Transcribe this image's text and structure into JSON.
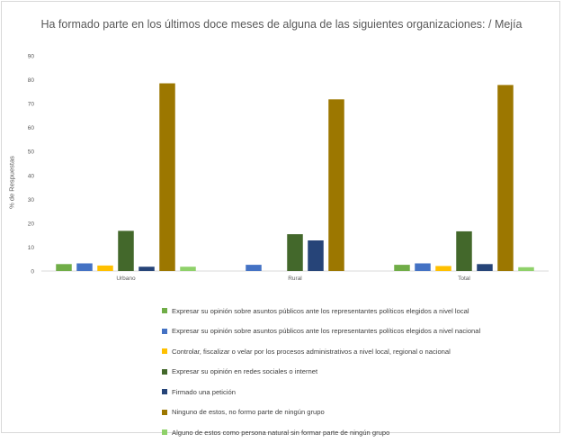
{
  "chart_data": {
    "type": "bar",
    "title": "Ha formado parte en los últimos doce meses de alguna de las siguientes organizaciones: / Mejía",
    "xlabel": "",
    "ylabel": "% de Respuestas",
    "ylim": [
      0,
      90
    ],
    "yticks": [
      0,
      10,
      20,
      30,
      40,
      50,
      60,
      70,
      80,
      90
    ],
    "grid": false,
    "legend_position": "bottom",
    "categories": [
      "Urbano",
      "Rural",
      "Total"
    ],
    "series": [
      {
        "name": "Expresar su opinión sobre asuntos públicos ante los representantes políticos elegidos a nivel local",
        "color": "#70ad47",
        "values": [
          2.9,
          null,
          2.6
        ]
      },
      {
        "name": "Expresar su opinión sobre asuntos públicos ante los representantes políticos elegidos a nivel nacional",
        "color": "#4472c4",
        "values": [
          3.2,
          2.6,
          3.2
        ]
      },
      {
        "name": "Controlar, fiscalizar o velar por los procesos administrativos a nivel local, regional o nacional",
        "color": "#ffc000",
        "values": [
          2.3,
          null,
          2.1
        ]
      },
      {
        "name": "Expresar su opinión en redes sociales o internet",
        "color": "#43682b",
        "values": [
          16.8,
          15.4,
          16.6
        ]
      },
      {
        "name": "Firmado una petición",
        "color": "#264478",
        "values": [
          1.8,
          12.8,
          2.9
        ]
      },
      {
        "name": "Ninguno de estos, no formo parte de ningún grupo",
        "color": "#9c7700",
        "values": [
          78.5,
          71.8,
          77.8
        ]
      },
      {
        "name": "Alguno de estos como persona natural sin formar parte de ningún grupo",
        "color": "#8fd16a",
        "values": [
          1.8,
          null,
          1.6
        ]
      }
    ]
  }
}
